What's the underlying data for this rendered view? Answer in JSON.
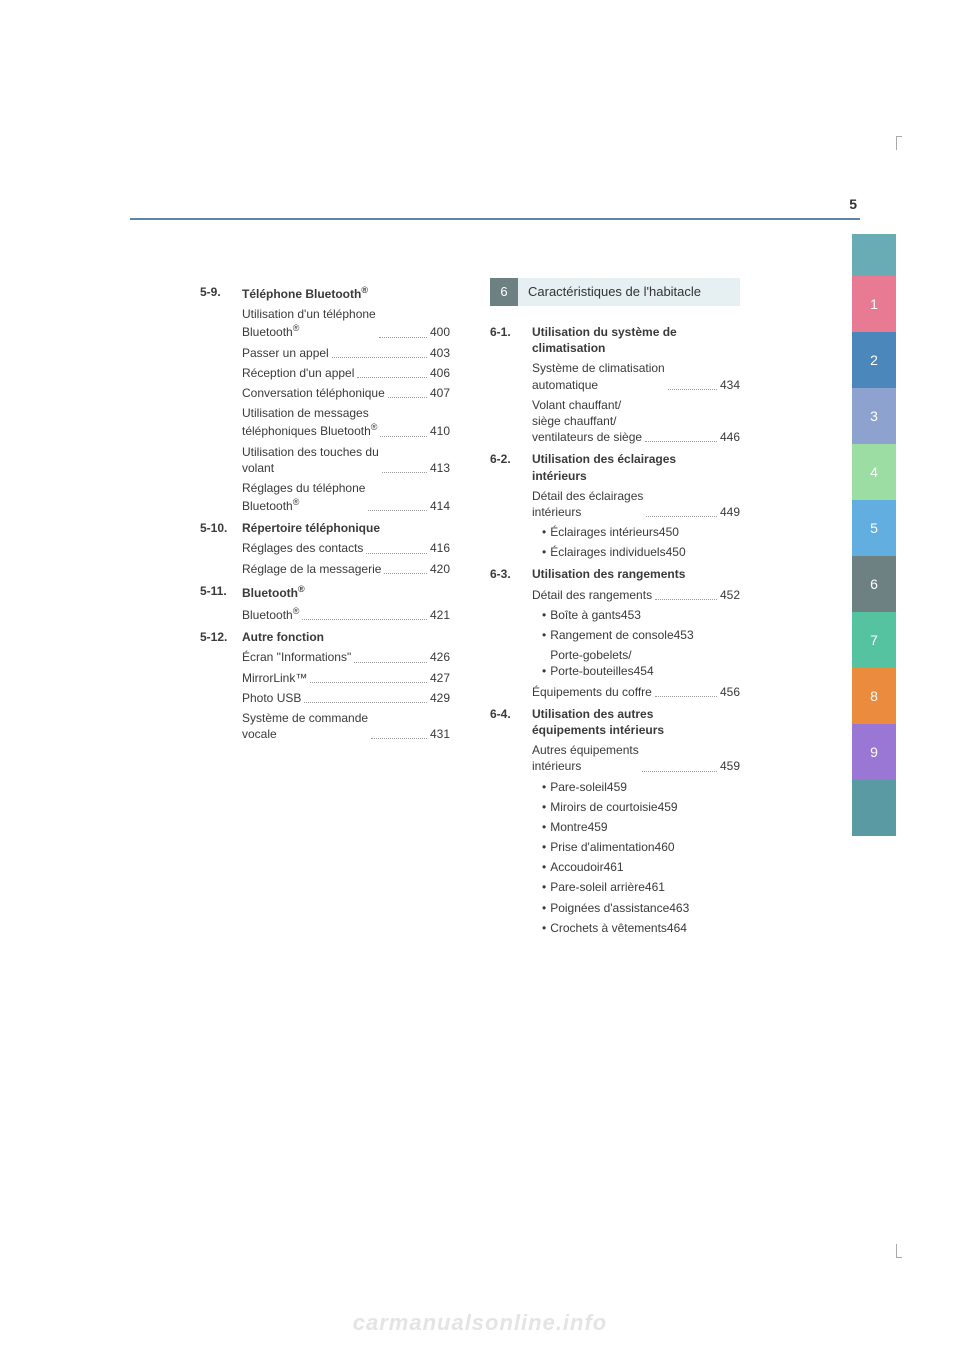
{
  "page_number": "5",
  "watermark": "carmanualsonline.info",
  "left_column": {
    "sections": [
      {
        "num": "5-9.",
        "title_parts": [
          "Téléphone Bluetooth",
          "®"
        ],
        "entries": [
          {
            "lines": [
              "Utilisation d'un téléphone",
              {
                "text": "Bluetooth",
                "sup": "®"
              }
            ],
            "page": "400"
          },
          {
            "lines": [
              "Passer un appel"
            ],
            "page": "403"
          },
          {
            "lines": [
              "Réception d'un appel"
            ],
            "page": "406"
          },
          {
            "lines": [
              "Conversation téléphonique"
            ],
            "page": "407"
          },
          {
            "lines": [
              "Utilisation de messages",
              {
                "text": "téléphoniques Bluetooth",
                "sup": "®"
              }
            ],
            "page": "410"
          },
          {
            "lines": [
              "Utilisation des touches du",
              "volant"
            ],
            "page": "413"
          },
          {
            "lines": [
              "Réglages du téléphone",
              {
                "text": "Bluetooth",
                "sup": "®"
              }
            ],
            "page": "414"
          }
        ]
      },
      {
        "num": "5-10.",
        "title_parts": [
          "Répertoire téléphonique"
        ],
        "entries": [
          {
            "lines": [
              "Réglages des contacts"
            ],
            "page": "416"
          },
          {
            "lines": [
              "Réglage de la messagerie"
            ],
            "page": "420"
          }
        ]
      },
      {
        "num": "5-11.",
        "title_parts": [
          "Bluetooth",
          "®"
        ],
        "entries": [
          {
            "lines": [
              {
                "text": "Bluetooth",
                "sup": "®"
              }
            ],
            "page": "421"
          }
        ]
      },
      {
        "num": "5-12.",
        "title_parts": [
          "Autre fonction"
        ],
        "entries": [
          {
            "lines": [
              "Écran \"Informations\""
            ],
            "page": "426"
          },
          {
            "lines": [
              "MirrorLink™"
            ],
            "page": "427"
          },
          {
            "lines": [
              "Photo USB"
            ],
            "page": "429"
          },
          {
            "lines": [
              "Système de commande",
              "vocale"
            ],
            "page": "431"
          }
        ]
      }
    ]
  },
  "right_column": {
    "chapter": {
      "num": "6",
      "title": "Caractéristiques de l'habitacle"
    },
    "sections": [
      {
        "num": "6-1.",
        "title_parts": [
          "Utilisation du système de",
          "climatisation"
        ],
        "entries": [
          {
            "lines": [
              "Système de climatisation",
              "automatique"
            ],
            "page": "434"
          },
          {
            "lines": [
              "Volant chauffant/",
              "siège chauffant/",
              "ventilateurs de siège"
            ],
            "page": "446"
          }
        ]
      },
      {
        "num": "6-2.",
        "title_parts": [
          "Utilisation des éclairages",
          "intérieurs"
        ],
        "entries": [
          {
            "lines": [
              "Détail des éclairages",
              "intérieurs"
            ],
            "page": "449"
          },
          {
            "bullet": true,
            "lines": [
              "Éclairages intérieurs"
            ],
            "page": "450"
          },
          {
            "bullet": true,
            "lines": [
              "Éclairages individuels"
            ],
            "page": "450"
          }
        ]
      },
      {
        "num": "6-3.",
        "title_parts": [
          "Utilisation des rangements"
        ],
        "entries": [
          {
            "lines": [
              "Détail des rangements"
            ],
            "page": "452"
          },
          {
            "bullet": true,
            "lines": [
              "Boîte à gants"
            ],
            "page": "453"
          },
          {
            "bullet": true,
            "lines": [
              "Rangement de console"
            ],
            "page": "453"
          },
          {
            "bullet": true,
            "lines": [
              "Porte-gobelets/",
              "Porte-bouteilles"
            ],
            "page": "454"
          },
          {
            "lines": [
              "Équipements du coffre"
            ],
            "page": "456"
          }
        ]
      },
      {
        "num": "6-4.",
        "title_parts": [
          "Utilisation des autres",
          "équipements intérieurs"
        ],
        "entries": [
          {
            "lines": [
              "Autres équipements",
              "intérieurs"
            ],
            "page": "459"
          },
          {
            "bullet": true,
            "lines": [
              "Pare-soleil"
            ],
            "page": "459"
          },
          {
            "bullet": true,
            "lines": [
              "Miroirs de courtoisie"
            ],
            "page": "459"
          },
          {
            "bullet": true,
            "lines": [
              "Montre"
            ],
            "page": "459"
          },
          {
            "bullet": true,
            "lines": [
              "Prise d'alimentation"
            ],
            "page": "460"
          },
          {
            "bullet": true,
            "lines": [
              "Accoudoir"
            ],
            "page": "461"
          },
          {
            "bullet": true,
            "lines": [
              "Pare-soleil arrière"
            ],
            "page": "461"
          },
          {
            "bullet": true,
            "lines": [
              "Poignées d'assistance"
            ],
            "page": "463"
          },
          {
            "bullet": true,
            "lines": [
              "Crochets à vêtements"
            ],
            "page": "464"
          }
        ]
      }
    ]
  },
  "tabs": [
    {
      "label": "1",
      "color": "#e87a94"
    },
    {
      "label": "2",
      "color": "#4b87bb"
    },
    {
      "label": "3",
      "color": "#8ea2cf"
    },
    {
      "label": "4",
      "color": "#9bdda2"
    },
    {
      "label": "5",
      "color": "#62aee0"
    },
    {
      "label": "6",
      "color": "#6d8082"
    },
    {
      "label": "7",
      "color": "#55c2a0"
    },
    {
      "label": "8",
      "color": "#ea8b3e"
    },
    {
      "label": "9",
      "color": "#9a77d4"
    },
    {
      "label": "",
      "color": "#5a9aa3"
    }
  ],
  "colors": {
    "rule": "#5b86a9",
    "tab_top": "#6aacb6",
    "chapter_num_bg": "#6d8082",
    "chapter_title_bg": "#e6f0f3"
  }
}
